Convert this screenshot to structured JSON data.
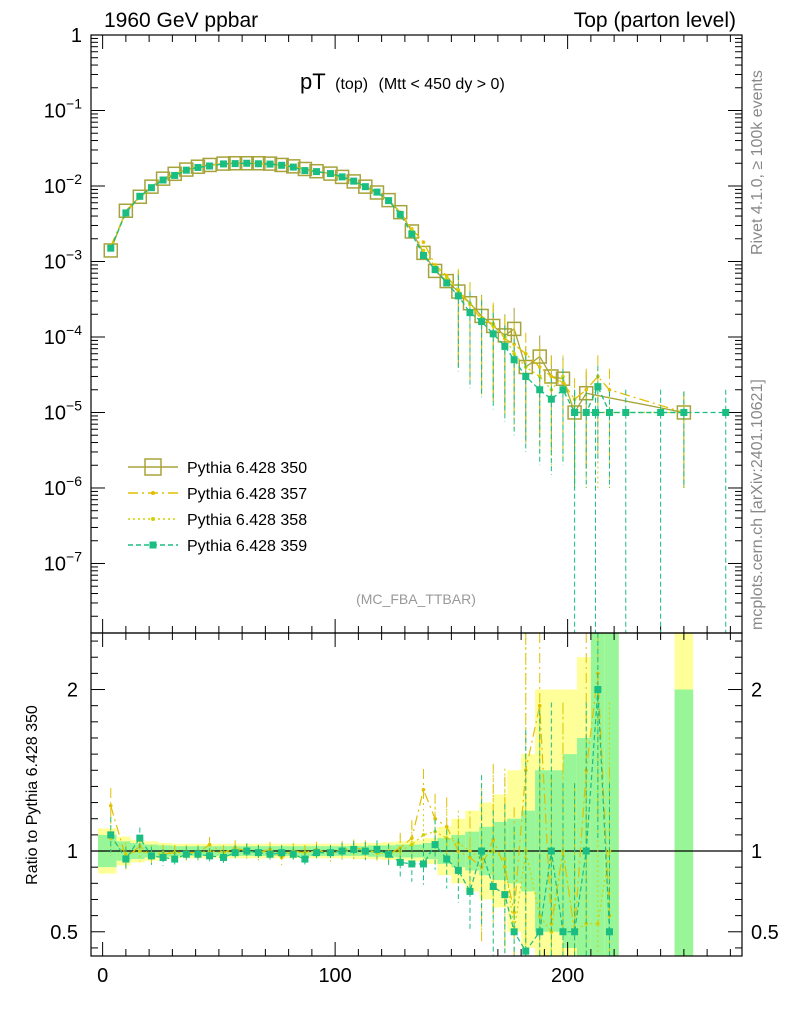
{
  "header": {
    "left": "1960 GeV ppbar",
    "right": "Top (parton level)"
  },
  "side_labels": {
    "rivet": "Rivet 4.1.0, ≥ 100k events",
    "mcplots": "mcplots.cern.ch [arXiv:2401.10621]"
  },
  "chart_data": [
    {
      "type": "line",
      "panel": "main",
      "title": "pT",
      "title_suffix_1": "(top)",
      "title_suffix_2": "(Mtt < 450 dy > 0)",
      "watermark": "(MC_FBA_TTBAR)",
      "yscale": "log",
      "ylim": [
        1.2e-08,
        1
      ],
      "xlim": [
        -5,
        275
      ],
      "y_ticks": [
        {
          "v": 1,
          "base": "1",
          "exp": ""
        },
        {
          "v": 0.1,
          "base": "10",
          "exp": "−1"
        },
        {
          "v": 0.01,
          "base": "10",
          "exp": "−2"
        },
        {
          "v": 0.001,
          "base": "10",
          "exp": "−3"
        },
        {
          "v": 0.0001,
          "base": "10",
          "exp": "−4"
        },
        {
          "v": 1e-05,
          "base": "10",
          "exp": "−5"
        },
        {
          "v": 1e-06,
          "base": "10",
          "exp": "−6"
        },
        {
          "v": 1e-07,
          "base": "10",
          "exp": "−7"
        }
      ],
      "legend": [
        {
          "name": "Pythia 6.428 350",
          "color": "#a7a33a",
          "style": "open-square-solid"
        },
        {
          "name": "Pythia 6.428 357",
          "color": "#e2bf00",
          "style": "dashdot"
        },
        {
          "name": "Pythia 6.428 358",
          "color": "#d2d200",
          "style": "dotted"
        },
        {
          "name": "Pythia 6.428 359",
          "color": "#1abe82",
          "style": "dashed-filled"
        }
      ],
      "x": [
        3.5,
        10,
        16,
        21,
        26,
        31,
        36,
        41,
        46,
        52,
        57,
        62,
        67,
        72,
        77,
        82,
        87,
        92,
        98,
        103,
        108,
        113,
        118,
        123,
        128,
        133,
        138,
        143,
        148,
        153,
        158,
        163,
        168,
        173,
        177,
        182,
        188,
        193,
        198,
        203,
        208,
        213,
        218,
        250
      ],
      "series": [
        {
          "name": "Pythia 6.428 350",
          "color": "#a7a33a",
          "dash": "",
          "marker": "open-square",
          "values": [
            0.0014,
            0.0047,
            0.0072,
            0.0098,
            0.0125,
            0.0145,
            0.0165,
            0.018,
            0.019,
            0.0198,
            0.02,
            0.02,
            0.02,
            0.0198,
            0.019,
            0.0182,
            0.0168,
            0.0157,
            0.0146,
            0.0132,
            0.0115,
            0.0098,
            0.0082,
            0.0065,
            0.0045,
            0.0025,
            0.0013,
            0.00075,
            0.00055,
            0.0004,
            0.00028,
            0.00019,
            0.00014,
            0.000105,
            0.000128,
            4e-05,
            5.5e-05,
            3e-05,
            2.8e-05,
            1e-05,
            1.8e-05,
            null,
            null,
            1e-05
          ]
        },
        {
          "name": "Pythia 6.428 357",
          "color": "#e2bf00",
          "dash": "10,4,2,4",
          "marker": "dot",
          "values": [
            0.0016,
            0.0045,
            0.007,
            0.0095,
            0.0122,
            0.0143,
            0.0163,
            0.0178,
            0.0188,
            0.0196,
            0.0198,
            0.0199,
            0.0198,
            0.0196,
            0.0188,
            0.018,
            0.0166,
            0.0155,
            0.0143,
            0.013,
            0.0113,
            0.0097,
            0.008,
            0.0064,
            0.0045,
            0.0027,
            0.0018,
            0.0009,
            0.00065,
            0.0004,
            0.00027,
            0.00017,
            0.00015,
            9.5e-05,
            8e-05,
            6e-05,
            4e-05,
            3e-05,
            2.5e-05,
            1.5e-05,
            2e-05,
            3e-05,
            2e-05,
            1e-05
          ]
        },
        {
          "name": "Pythia 6.428 358",
          "color": "#d2d200",
          "dash": "2,3",
          "marker": "dot",
          "values": [
            0.0015,
            0.0046,
            0.0071,
            0.0096,
            0.0123,
            0.0144,
            0.0164,
            0.0179,
            0.0189,
            0.0197,
            0.0199,
            0.02,
            0.0199,
            0.0197,
            0.0189,
            0.0181,
            0.0167,
            0.0156,
            0.0144,
            0.0131,
            0.0114,
            0.0097,
            0.0081,
            0.0064,
            0.0045,
            0.0026,
            0.0014,
            0.00085,
            0.0006,
            0.00042,
            0.00028,
            0.00018,
            0.00014,
            0.0001,
            6e-05,
            4e-05,
            3e-05,
            2e-05,
            3e-05,
            1e-05,
            1e-05,
            1e-05,
            1e-05,
            1e-05
          ]
        },
        {
          "name": "Pythia 6.428 359",
          "color": "#1abe82",
          "dash": "5,3",
          "marker": "filled-square",
          "values": [
            0.0015,
            0.0044,
            0.0073,
            0.0095,
            0.012,
            0.0138,
            0.0162,
            0.0176,
            0.0184,
            0.0196,
            0.0198,
            0.02,
            0.0197,
            0.0195,
            0.0188,
            0.0178,
            0.016,
            0.0155,
            0.0146,
            0.0132,
            0.0116,
            0.0098,
            0.0083,
            0.0064,
            0.0042,
            0.0023,
            0.0012,
            0.00078,
            0.00052,
            0.00035,
            0.00021,
            0.00016,
            0.00011,
            7.5e-05,
            5e-05,
            3e-05,
            2e-05,
            1.5e-05,
            2e-05,
            1e-05,
            1e-05,
            2.2e-05,
            1e-05,
            1e-05
          ]
        }
      ],
      "tail_points_359": {
        "x": [
          203,
          212,
          225,
          240,
          268
        ],
        "y": [
          1e-05,
          1e-05,
          1e-05,
          1e-05,
          1e-05
        ]
      }
    },
    {
      "type": "line",
      "panel": "ratio",
      "ylabel": "Ratio to Pythia 6.428 350",
      "ylim": [
        0.35,
        2.35
      ],
      "xlim": [
        -5,
        275
      ],
      "y_ticks": [
        0.5,
        1,
        2
      ],
      "y_tick_labels": [
        "0.5",
        "1",
        "2"
      ],
      "x_ticks": [
        0,
        100,
        200
      ],
      "x_tick_labels": [
        "0",
        "100",
        "200"
      ],
      "band_bins": [
        [
          -2,
          6
        ],
        [
          6,
          12
        ],
        [
          12,
          18
        ],
        [
          18,
          24
        ],
        [
          24,
          30
        ],
        [
          30,
          36
        ],
        [
          36,
          42
        ],
        [
          42,
          48
        ],
        [
          48,
          54
        ],
        [
          54,
          60
        ],
        [
          60,
          66
        ],
        [
          66,
          72
        ],
        [
          72,
          78
        ],
        [
          78,
          84
        ],
        [
          84,
          90
        ],
        [
          90,
          96
        ],
        [
          96,
          102
        ],
        [
          102,
          108
        ],
        [
          108,
          114
        ],
        [
          114,
          120
        ],
        [
          120,
          126
        ],
        [
          126,
          132
        ],
        [
          132,
          138
        ],
        [
          138,
          144
        ],
        [
          144,
          150
        ],
        [
          150,
          156
        ],
        [
          156,
          162
        ],
        [
          162,
          168
        ],
        [
          168,
          174
        ],
        [
          174,
          180
        ],
        [
          180,
          186
        ],
        [
          186,
          192
        ],
        [
          192,
          198
        ],
        [
          198,
          204
        ],
        [
          204,
          210
        ],
        [
          210,
          216
        ],
        [
          216,
          222
        ],
        [
          246,
          254
        ]
      ],
      "band_half_width_green": [
        0.1,
        0.06,
        0.05,
        0.04,
        0.035,
        0.03,
        0.03,
        0.03,
        0.03,
        0.03,
        0.03,
        0.03,
        0.03,
        0.03,
        0.03,
        0.03,
        0.03,
        0.03,
        0.03,
        0.035,
        0.035,
        0.04,
        0.04,
        0.05,
        0.08,
        0.1,
        0.12,
        0.15,
        0.18,
        0.2,
        0.25,
        0.5,
        0.5,
        0.6,
        0.7,
        1.5,
        1.5,
        1.0
      ],
      "band_half_width_yellow": [
        0.14,
        0.09,
        0.07,
        0.06,
        0.05,
        0.045,
        0.045,
        0.045,
        0.045,
        0.045,
        0.045,
        0.045,
        0.045,
        0.045,
        0.045,
        0.045,
        0.045,
        0.045,
        0.05,
        0.05,
        0.055,
        0.06,
        0.065,
        0.08,
        0.15,
        0.2,
        0.25,
        0.3,
        0.35,
        0.5,
        0.6,
        1.0,
        1.0,
        1.0,
        1.2,
        1.5,
        1.5,
        1.5
      ],
      "x": [
        3.5,
        10,
        16,
        21,
        26,
        31,
        36,
        41,
        46,
        52,
        57,
        62,
        67,
        72,
        77,
        82,
        87,
        92,
        98,
        103,
        108,
        113,
        118,
        123,
        128,
        133,
        138,
        143,
        148,
        153,
        158,
        163,
        168,
        173,
        177,
        182,
        188,
        193,
        198,
        203,
        208,
        213,
        218
      ],
      "series": [
        {
          "name": "Pythia 6.428 357",
          "color": "#e2bf00",
          "dash": "10,4,2,4",
          "marker": "dot",
          "values": [
            1.28,
            0.96,
            1.03,
            0.97,
            0.98,
            0.99,
            0.99,
            0.99,
            1.04,
            0.99,
            1.02,
            1.0,
            0.99,
            1.01,
            0.96,
            1.0,
            0.99,
            1.01,
            0.98,
            1.01,
            1.02,
            1.01,
            0.99,
            0.98,
            1.02,
            1.08,
            1.38,
            1.2,
            1.15,
            1.0,
            0.96,
            0.9,
            1.07,
            0.9,
            0.62,
            1.5,
            1.9,
            0.55,
            1.0,
            0.5,
            1.5,
            2.1,
            0.6
          ]
        },
        {
          "name": "Pythia 6.428 358",
          "color": "#d2d200",
          "dash": "2,3",
          "marker": "dot",
          "values": [
            1.08,
            0.98,
            1.0,
            0.98,
            0.99,
            0.99,
            0.99,
            0.99,
            1.0,
            0.99,
            1.0,
            1.0,
            0.99,
            1.0,
            0.98,
            1.0,
            0.99,
            1.0,
            0.99,
            1.0,
            1.0,
            1.0,
            0.99,
            0.98,
            1.0,
            1.04,
            1.1,
            1.12,
            1.08,
            1.05,
            1.0,
            0.95,
            1.0,
            0.95,
            0.5,
            1.0,
            0.6,
            0.5,
            1.0,
            0.5,
            0.55,
            0.55,
            1.0
          ]
        },
        {
          "name": "Pythia 6.428 359",
          "color": "#1abe82",
          "dash": "5,3",
          "marker": "filled-square",
          "values": [
            1.1,
            0.95,
            1.08,
            0.97,
            0.96,
            0.95,
            0.98,
            0.98,
            0.97,
            0.96,
            0.99,
            1.0,
            0.99,
            0.98,
            0.99,
            0.98,
            0.95,
            0.99,
            0.99,
            1.0,
            1.01,
            1.0,
            1.01,
            0.98,
            0.93,
            0.92,
            0.92,
            1.04,
            0.95,
            0.88,
            0.75,
            1.0,
            0.78,
            0.73,
            0.5,
            0.38,
            0.5,
            1.0,
            0.5,
            0.5,
            1.0,
            2.0,
            0.5
          ]
        }
      ]
    }
  ]
}
